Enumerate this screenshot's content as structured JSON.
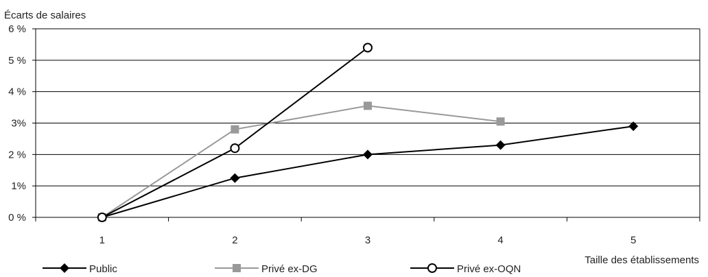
{
  "chart_data": {
    "type": "line",
    "title": "",
    "ylabel": "Écarts de salaires",
    "xlabel": "Taille des établissements",
    "categories": [
      "1",
      "2",
      "3",
      "4",
      "5"
    ],
    "ylim": [
      0,
      6
    ],
    "y_ticks": [
      {
        "value": 0,
        "label": "0 %"
      },
      {
        "value": 1,
        "label": "1%"
      },
      {
        "value": 2,
        "label": "2 %"
      },
      {
        "value": 3,
        "label": "3%"
      },
      {
        "value": 4,
        "label": "4 %"
      },
      {
        "value": 5,
        "label": "5 %"
      },
      {
        "value": 6,
        "label": "6 %"
      }
    ],
    "grid": true,
    "legend_position": "bottom",
    "series": [
      {
        "name": "Public",
        "marker": "diamond",
        "color": "#000000",
        "values": [
          0.0,
          1.25,
          2.0,
          2.3,
          2.9
        ]
      },
      {
        "name": "Privé ex-DG",
        "marker": "square",
        "color": "#999999",
        "values": [
          0.0,
          2.8,
          3.55,
          3.05,
          null
        ]
      },
      {
        "name": "Privé ex-OQN",
        "marker": "circle",
        "color": "#000000",
        "values": [
          0.0,
          2.2,
          5.4,
          null,
          null
        ]
      }
    ]
  }
}
